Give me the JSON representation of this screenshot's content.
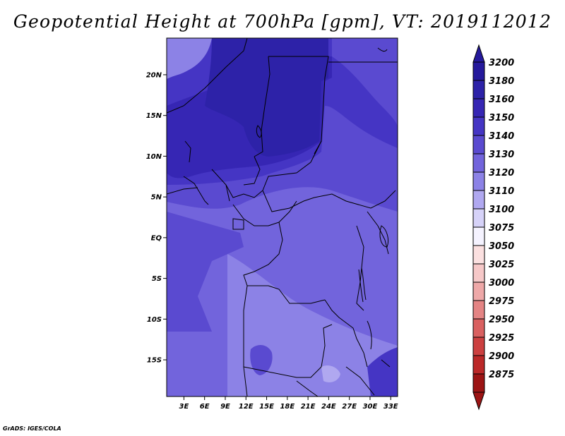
{
  "title": "Geopotential Height at 700hPa [gpm], VT: 2019112012",
  "credit": "GrADS: IGES/COLA",
  "map": {
    "lat_range": [
      -19.5,
      24.5
    ],
    "lon_range": [
      0.5,
      34.0
    ],
    "lat_ticks": [
      "20N",
      "15N",
      "10N",
      "5N",
      "EQ",
      "5S",
      "10S",
      "15S"
    ],
    "lat_tick_values": [
      20,
      15,
      10,
      5,
      0,
      -5,
      -10,
      -15
    ],
    "lon_ticks": [
      "3E",
      "6E",
      "9E",
      "12E",
      "15E",
      "18E",
      "21E",
      "24E",
      "27E",
      "30E",
      "33E"
    ],
    "lon_tick_values": [
      3,
      6,
      9,
      12,
      15,
      18,
      21,
      24,
      27,
      30,
      33
    ]
  },
  "colorbar": {
    "levels": [
      "3200",
      "3180",
      "3160",
      "3150",
      "3140",
      "3130",
      "3120",
      "3110",
      "3100",
      "3075",
      "3050",
      "3025",
      "3000",
      "2975",
      "2950",
      "2925",
      "2900",
      "2875"
    ],
    "colors": [
      "#25199c",
      "#2d22a8",
      "#3626b4",
      "#4535c4",
      "#5a4ad0",
      "#7264dc",
      "#8c82e6",
      "#b0a8f0",
      "#d6d2f8",
      "#f5f3ff",
      "#fbe0e0",
      "#f6c8c8",
      "#eea8a8",
      "#e48484",
      "#d96060",
      "#cc4040",
      "#bb2828",
      "#9c1414"
    ]
  }
}
